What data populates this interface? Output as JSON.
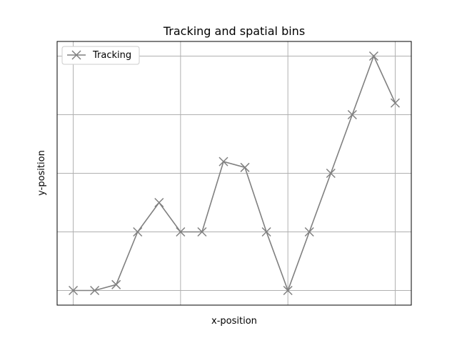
{
  "chart_data": {
    "type": "line",
    "title": "Tracking and spatial bins",
    "xlabel": "x-position",
    "ylabel": "y-position",
    "xlim": [
      -0.75,
      15.75
    ],
    "ylim": [
      -0.25,
      4.25
    ],
    "x_grid": [
      0,
      5,
      10,
      15
    ],
    "y_grid": [
      0,
      1,
      2,
      3,
      4,
      5
    ],
    "grid": true,
    "legend": "top-left",
    "tick_labels_visible": false,
    "series": [
      {
        "name": "Tracking",
        "color": "#808080",
        "marker": "x",
        "x": [
          0,
          1,
          2,
          3,
          4,
          5,
          6,
          7,
          8,
          9,
          10,
          11,
          12,
          13,
          14,
          15
        ],
        "y": [
          0,
          0,
          0.1,
          1.0,
          1.5,
          1.0,
          1.0,
          2.2,
          2.1,
          1.0,
          0,
          1.0,
          2.0,
          3.0,
          4.0,
          3.2
        ]
      }
    ]
  }
}
